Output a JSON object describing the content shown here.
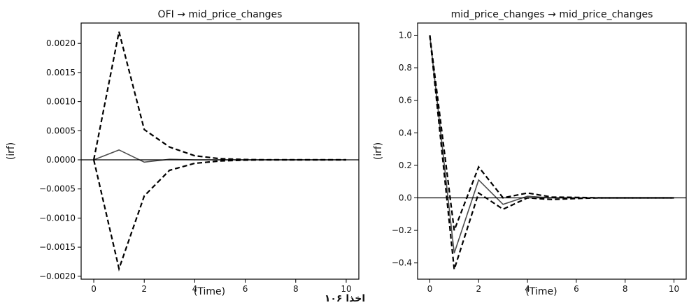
{
  "caption": "اخذا ۱۰۶",
  "chart_data": [
    {
      "type": "line",
      "title": "OFI → mid_price_changes",
      "xlabel": "(Time)",
      "ylabel": "(irf)",
      "xlim": [
        -0.5,
        10.5
      ],
      "ylim": [
        -0.00205,
        0.00235
      ],
      "xticks": [
        0,
        2,
        4,
        6,
        8,
        10
      ],
      "xtick_labels": [
        "0",
        "2",
        "4",
        "6",
        "8",
        "10"
      ],
      "yticks": [
        -0.002,
        -0.0015,
        -0.001,
        -0.0005,
        0,
        0.0005,
        0.001,
        0.0015,
        0.002
      ],
      "ytick_labels": [
        "−0.0020",
        "−0.0015",
        "−0.0010",
        "−0.0005",
        "0.0000",
        "0.0005",
        "0.0010",
        "0.0015",
        "0.0020"
      ],
      "hline": 0,
      "grid": false,
      "x": [
        0,
        1,
        2,
        3,
        4,
        5,
        6,
        7,
        8,
        9,
        10
      ],
      "series": [
        {
          "role": "irf",
          "style": "solid",
          "color": "#4d4d4d",
          "values": [
            0,
            0.00017,
            -4e-05,
            1e-05,
            0,
            0,
            0,
            0,
            0,
            0,
            0
          ]
        },
        {
          "role": "upper",
          "style": "dashed",
          "color": "#000000",
          "values": [
            0,
            0.0022,
            0.00052,
            0.00022,
            7e-05,
            2e-05,
            5e-06,
            0,
            0,
            0,
            0
          ]
        },
        {
          "role": "lower",
          "style": "dashed",
          "color": "#000000",
          "values": [
            0,
            -0.00187,
            -0.00062,
            -0.00018,
            -6e-05,
            -2e-05,
            -5e-06,
            0,
            0,
            0,
            0
          ]
        }
      ]
    },
    {
      "type": "line",
      "title": "mid_price_changes → mid_price_changes",
      "xlabel": "(Time)",
      "ylabel": "(irf)",
      "xlim": [
        -0.5,
        10.5
      ],
      "ylim": [
        -0.5,
        1.075
      ],
      "xticks": [
        0,
        2,
        4,
        6,
        8,
        10
      ],
      "xtick_labels": [
        "0",
        "2",
        "4",
        "6",
        "8",
        "10"
      ],
      "yticks": [
        -0.4,
        -0.2,
        0,
        0.2,
        0.4,
        0.6,
        0.8,
        1.0
      ],
      "ytick_labels": [
        "−0.4",
        "−0.2",
        "0.0",
        "0.2",
        "0.4",
        "0.6",
        "0.8",
        "1.0"
      ],
      "hline": 0,
      "grid": false,
      "x": [
        0,
        1,
        2,
        3,
        4,
        5,
        6,
        7,
        8,
        9,
        10
      ],
      "series": [
        {
          "role": "irf",
          "style": "solid",
          "color": "#4d4d4d",
          "values": [
            1.0,
            -0.34,
            0.11,
            -0.04,
            0.01,
            0,
            0,
            0,
            0,
            0,
            0
          ]
        },
        {
          "role": "upper",
          "style": "dashed",
          "color": "#000000",
          "values": [
            1.0,
            -0.2,
            0.19,
            0.0,
            0.03,
            0.005,
            0.003,
            0,
            0,
            0,
            0
          ]
        },
        {
          "role": "lower",
          "style": "dashed",
          "color": "#000000",
          "values": [
            1.0,
            -0.44,
            0.03,
            -0.07,
            0.0,
            -0.01,
            -0.004,
            0,
            0,
            0,
            0
          ]
        }
      ]
    }
  ]
}
